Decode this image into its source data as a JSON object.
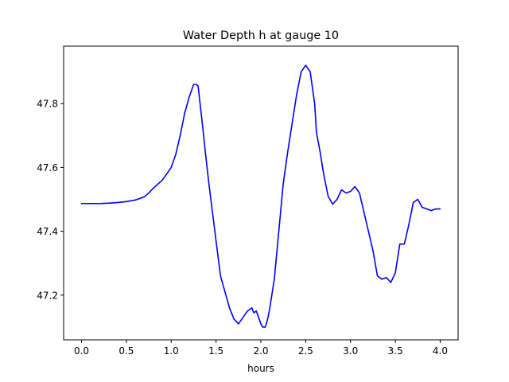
{
  "chart_data": {
    "type": "line",
    "title": "Water Depth h at gauge 10",
    "xlabel": "hours",
    "ylabel": "",
    "xlim": [
      -0.2,
      4.2
    ],
    "ylim": [
      47.06,
      47.98
    ],
    "xticks": [
      0.0,
      0.5,
      1.0,
      1.5,
      2.0,
      2.5,
      3.0,
      3.5,
      4.0
    ],
    "xtick_labels": [
      "0.0",
      "0.5",
      "1.0",
      "1.5",
      "2.0",
      "2.5",
      "3.0",
      "3.5",
      "4.0"
    ],
    "yticks": [
      47.2,
      47.4,
      47.6,
      47.8
    ],
    "ytick_labels": [
      "47.2",
      "47.4",
      "47.6",
      "47.8"
    ],
    "grid": false,
    "series": [
      {
        "color": "#0000ff",
        "x": [
          0.0,
          0.1,
          0.2,
          0.3,
          0.4,
          0.5,
          0.6,
          0.7,
          0.75,
          0.8,
          0.9,
          1.0,
          1.05,
          1.1,
          1.15,
          1.2,
          1.25,
          1.28,
          1.3,
          1.35,
          1.38,
          1.42,
          1.46,
          1.5,
          1.55,
          1.6,
          1.65,
          1.7,
          1.75,
          1.8,
          1.85,
          1.9,
          1.92,
          1.95,
          2.0,
          2.02,
          2.05,
          2.08,
          2.1,
          2.15,
          2.2,
          2.25,
          2.3,
          2.35,
          2.4,
          2.45,
          2.5,
          2.55,
          2.6,
          2.62,
          2.66,
          2.7,
          2.75,
          2.8,
          2.85,
          2.9,
          2.95,
          3.0,
          3.05,
          3.1,
          3.15,
          3.2,
          3.25,
          3.3,
          3.35,
          3.4,
          3.45,
          3.5,
          3.55,
          3.6,
          3.65,
          3.7,
          3.75,
          3.8,
          3.85,
          3.9,
          3.95,
          4.0
        ],
        "y": [
          47.487,
          47.487,
          47.487,
          47.488,
          47.49,
          47.493,
          47.498,
          47.508,
          47.52,
          47.535,
          47.56,
          47.6,
          47.64,
          47.7,
          47.77,
          47.82,
          47.86,
          47.86,
          47.855,
          47.73,
          47.65,
          47.55,
          47.46,
          47.37,
          47.26,
          47.21,
          47.16,
          47.125,
          47.11,
          47.13,
          47.15,
          47.16,
          47.145,
          47.15,
          47.11,
          47.1,
          47.1,
          47.13,
          47.16,
          47.25,
          47.4,
          47.55,
          47.65,
          47.74,
          47.83,
          47.9,
          47.92,
          47.9,
          47.8,
          47.71,
          47.65,
          47.58,
          47.51,
          47.485,
          47.5,
          47.53,
          47.52,
          47.525,
          47.54,
          47.52,
          47.46,
          47.4,
          47.34,
          47.26,
          47.25,
          47.255,
          47.24,
          47.27,
          47.36,
          47.36,
          47.42,
          47.49,
          47.5,
          47.475,
          47.47,
          47.465,
          47.47,
          47.47
        ]
      }
    ]
  }
}
